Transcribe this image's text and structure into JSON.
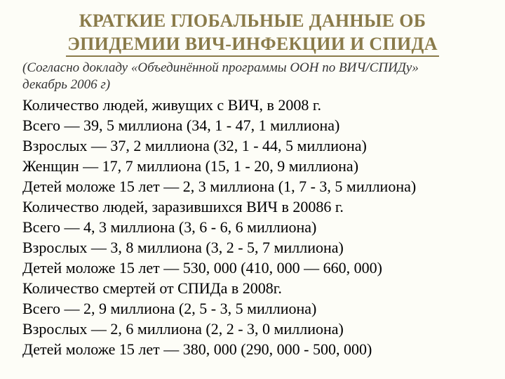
{
  "title_line1": "КРАТКИЕ ГЛОБАЛЬНЫЕ ДАННЫЕ ОБ",
  "title_line2": "ЭПИДЕМИИ ВИЧ-ИНФЕКЦИИ И СПИДА",
  "subtitle_line1": "(Согласно докладу «Объединённой программы ООН по ВИЧ/СПИДу»",
  "subtitle_line2": "декабрь 2006 г)",
  "lines": [
    "Количество людей, живущих с ВИЧ, в 2008 г.",
    "Всего — 39, 5 миллиона (34, 1 - 47, 1 миллиона)",
    "Взрослых — 37, 2 миллиона (32, 1 - 44, 5 миллиона)",
    "Женщин — 17, 7 миллиона (15, 1 - 20, 9 миллиона)",
    "Детей моложе 15 лет — 2, 3 миллиона (1, 7 - 3, 5 миллиона)",
    "Количество людей, заразившихся ВИЧ в 20086 г.",
    "Всего — 4, 3 миллиона (3, 6 - 6, 6 миллиона)",
    "Взрослых — 3, 8 миллиона (3, 2 - 5, 7 миллиона)",
    "Детей моложе 15 лет — 530, 000 (410, 000 — 660, 000)",
    "Количество смертей от СПИДа в 2008г.",
    "Всего — 2, 9 миллиона (2, 5 - 3, 5 миллиона)",
    "Взрослых — 2, 6 миллиона (2, 2 - 3, 0 миллиона)",
    "Детей моложе 15 лет — 380, 000 (290, 000 - 500, 000)"
  ],
  "colors": {
    "title": "#8a7b4a",
    "body": "#000000",
    "background": "#fdfdf7"
  }
}
